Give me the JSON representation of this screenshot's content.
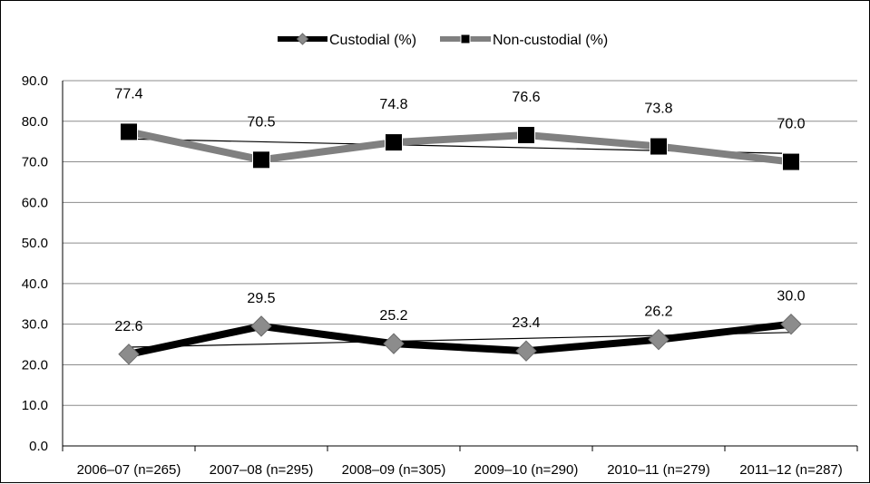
{
  "chart_data": {
    "type": "line",
    "categories": [
      "2006–07 (n=265)",
      "2007–08 (n=295)",
      "2008–09 (n=305)",
      "2009–10 (n=290)",
      "2010–11 (n=279)",
      "2011–12 (n=287)"
    ],
    "series": [
      {
        "name": "Custodial (%)",
        "values": [
          22.6,
          29.5,
          25.2,
          23.4,
          26.2,
          30.0
        ],
        "labels": [
          "22.6",
          "29.5",
          "25.2",
          "23.4",
          "26.2",
          "30.0"
        ],
        "line_color": "#000000",
        "marker": "diamond",
        "marker_color": "#8c8c8c",
        "trendline": true
      },
      {
        "name": "Non-custodial  (%)",
        "values": [
          77.4,
          70.5,
          74.8,
          76.6,
          73.8,
          70.0
        ],
        "labels": [
          "77.4",
          "70.5",
          "74.8",
          "76.6",
          "73.8",
          "70.0"
        ],
        "line_color": "#808080",
        "marker": "square",
        "marker_color": "#000000",
        "trendline": true
      }
    ],
    "y_ticks": [
      "0.0",
      "10.0",
      "20.0",
      "30.0",
      "40.0",
      "50.0",
      "60.0",
      "70.0",
      "80.0",
      "90.0"
    ],
    "ylim": [
      0,
      90
    ],
    "grid": true,
    "legend_position": "top-center",
    "title": "",
    "xlabel": "",
    "ylabel": ""
  }
}
